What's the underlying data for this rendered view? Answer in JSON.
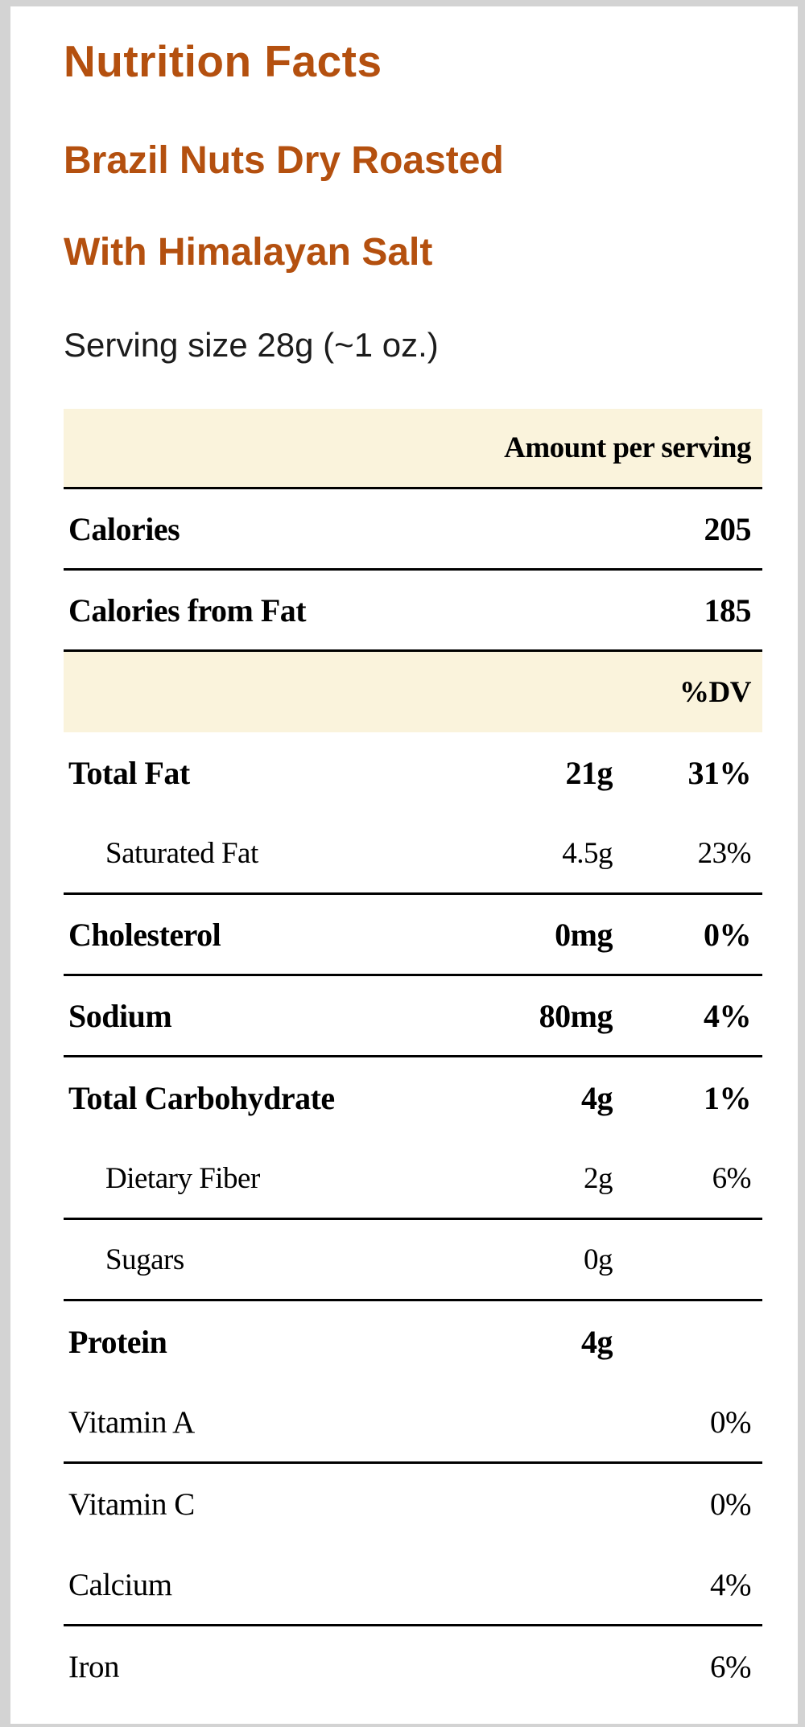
{
  "label": {
    "title": "Nutrition Facts",
    "product_name_line1": "Brazil Nuts Dry Roasted",
    "product_name_line2": "With Himalayan Salt",
    "serving_size": "Serving size 28g (~1 oz.)"
  },
  "table": {
    "amount_header": "Amount per serving",
    "dv_header": "%DV",
    "rows": [
      {
        "label": "Calories",
        "amount": "",
        "dv": "205"
      },
      {
        "label": "Calories from Fat",
        "amount": "",
        "dv": "185"
      },
      {
        "label": "Total Fat",
        "amount": "21g",
        "dv": "31%"
      },
      {
        "label": "Saturated Fat",
        "amount": "4.5g",
        "dv": "23%"
      },
      {
        "label": "Cholesterol",
        "amount": "0mg",
        "dv": "0%"
      },
      {
        "label": "Sodium",
        "amount": "80mg",
        "dv": "4%"
      },
      {
        "label": "Total Carbohydrate",
        "amount": "4g",
        "dv": "1%"
      },
      {
        "label": "Dietary Fiber",
        "amount": "2g",
        "dv": "6%"
      },
      {
        "label": "Sugars",
        "amount": "0g",
        "dv": ""
      },
      {
        "label": "Protein",
        "amount": "4g",
        "dv": ""
      },
      {
        "label": "Vitamin A",
        "amount": "",
        "dv": "0%"
      },
      {
        "label": "Vitamin C",
        "amount": "",
        "dv": "0%"
      },
      {
        "label": "Calcium",
        "amount": "",
        "dv": "4%"
      },
      {
        "label": "Iron",
        "amount": "",
        "dv": "6%"
      }
    ]
  },
  "colors": {
    "accent": "#b4500f",
    "cream_band": "#faf3dc",
    "text": "#000000"
  }
}
